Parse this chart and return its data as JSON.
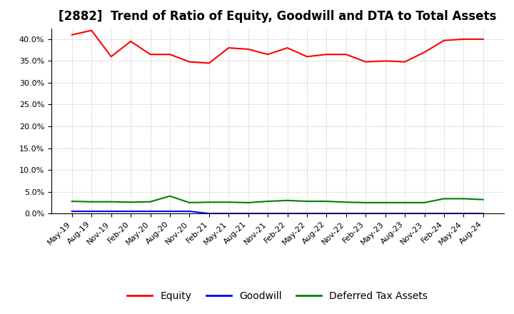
{
  "title": "[2882]  Trend of Ratio of Equity, Goodwill and DTA to Total Assets",
  "x_labels": [
    "May-19",
    "Aug-19",
    "Nov-19",
    "Feb-20",
    "May-20",
    "Aug-20",
    "Nov-20",
    "Feb-21",
    "May-21",
    "Aug-21",
    "Nov-21",
    "Feb-22",
    "May-22",
    "Aug-22",
    "Nov-22",
    "Feb-23",
    "May-23",
    "Aug-23",
    "Nov-23",
    "Feb-24",
    "May-24",
    "Aug-24"
  ],
  "equity": [
    0.41,
    0.42,
    0.36,
    0.395,
    0.365,
    0.365,
    0.348,
    0.345,
    0.38,
    0.377,
    0.365,
    0.38,
    0.36,
    0.365,
    0.365,
    0.348,
    0.35,
    0.348,
    0.37,
    0.397,
    0.4,
    0.4
  ],
  "goodwill": [
    0.005,
    0.005,
    0.005,
    0.005,
    0.005,
    0.005,
    0.005,
    0.0,
    0.0,
    0.0,
    0.0,
    0.0,
    0.0,
    0.0,
    0.0,
    0.0,
    0.0,
    0.0,
    0.0,
    0.0,
    0.0,
    0.0
  ],
  "dta": [
    0.028,
    0.027,
    0.027,
    0.026,
    0.027,
    0.04,
    0.025,
    0.026,
    0.026,
    0.025,
    0.028,
    0.03,
    0.028,
    0.028,
    0.026,
    0.025,
    0.025,
    0.025,
    0.025,
    0.034,
    0.034,
    0.032
  ],
  "equity_color": "#ff0000",
  "goodwill_color": "#0000ff",
  "dta_color": "#008000",
  "ylim": [
    0.0,
    0.425
  ],
  "yticks": [
    0.0,
    0.05,
    0.1,
    0.15,
    0.2,
    0.25,
    0.3,
    0.35,
    0.4
  ],
  "background_color": "#ffffff",
  "grid_color": "#aaaaaa",
  "legend_labels": [
    "Equity",
    "Goodwill",
    "Deferred Tax Assets"
  ],
  "title_fontsize": 12,
  "axis_fontsize": 8,
  "legend_fontsize": 10,
  "linewidth": 1.5
}
